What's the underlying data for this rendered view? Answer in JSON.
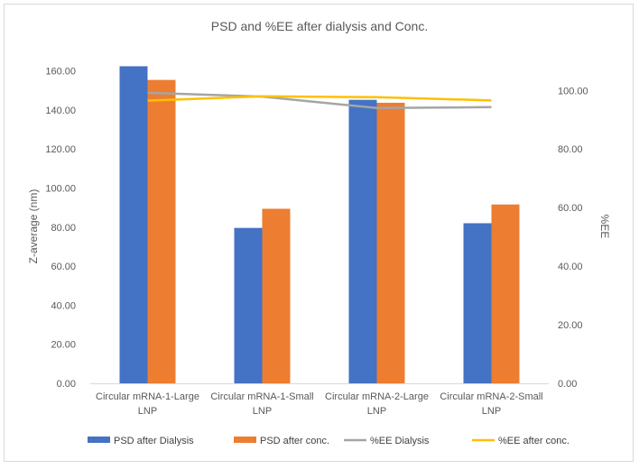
{
  "chart_data": {
    "type": "bar",
    "title": "PSD and %EE after dialysis and Conc.",
    "ylabel": "Z-average (nm)",
    "y2label": "%EE",
    "ylim": [
      0,
      170
    ],
    "y2lim": [
      0,
      113.33
    ],
    "yticks": [
      "0.00",
      "20.00",
      "40.00",
      "60.00",
      "80.00",
      "100.00",
      "120.00",
      "140.00",
      "160.00"
    ],
    "y2ticks": [
      "0.00",
      "20.00",
      "40.00",
      "60.00",
      "80.00",
      "100.00"
    ],
    "categories": [
      [
        "Circular mRNA-1-Large",
        "LNP"
      ],
      [
        "Circular mRNA-1-Small",
        "LNP"
      ],
      [
        "Circular mRNA-2-Large",
        "LNP"
      ],
      [
        "Circular mRNA-2-Small",
        "LNP"
      ]
    ],
    "series": [
      {
        "name": "PSD after Dialysis",
        "kind": "bar",
        "axis": "left",
        "color": "#4472c4",
        "values": [
          162.4,
          79.6,
          145.2,
          82.0
        ]
      },
      {
        "name": "PSD after conc.",
        "kind": "bar",
        "axis": "left",
        "color": "#ed7d31",
        "values": [
          155.4,
          89.4,
          143.7,
          91.6
        ]
      },
      {
        "name": "%EE Dialysis",
        "kind": "line",
        "axis": "right",
        "color": "#a5a5a5",
        "values": [
          99.2,
          97.9,
          94.0,
          94.3
        ]
      },
      {
        "name": "%EE after conc.",
        "kind": "line",
        "axis": "right",
        "color": "#ffc000",
        "values": [
          96.5,
          98.0,
          97.7,
          96.6
        ]
      }
    ],
    "grid": false,
    "legend": "bottom"
  }
}
